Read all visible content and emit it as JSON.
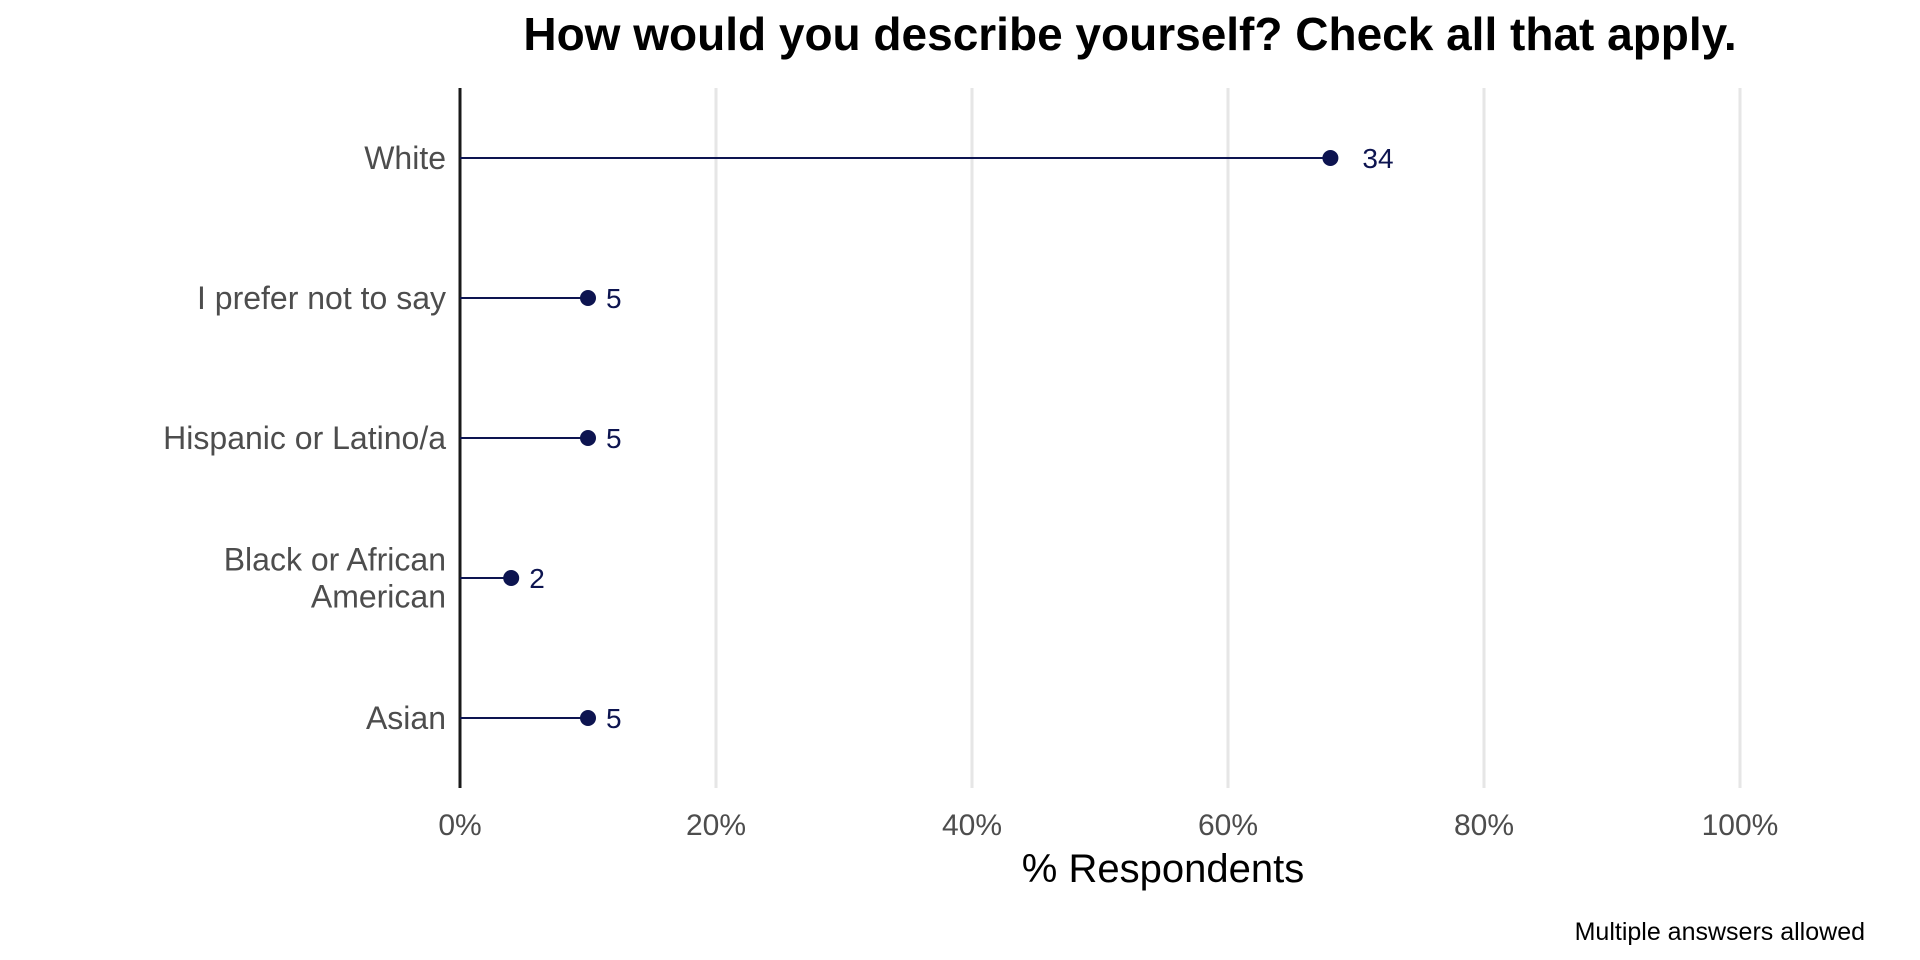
{
  "chart_data": {
    "type": "lollipop",
    "title": "How would you describe yourself? Check all that apply.",
    "xlabel": "% Respondents",
    "ylabel": "",
    "caption": "Multiple answsers allowed",
    "xlim": [
      0,
      100
    ],
    "x_ticks": [
      "0%",
      "20%",
      "40%",
      "60%",
      "80%",
      "100%"
    ],
    "categories": [
      [
        "White"
      ],
      [
        "I prefer not to say"
      ],
      [
        "Hispanic or Latino/a"
      ],
      [
        "Black or African",
        "American"
      ],
      [
        "Asian"
      ]
    ],
    "percent": [
      68,
      10,
      10,
      4,
      10
    ],
    "counts": [
      "34",
      "5",
      "5",
      "2",
      "5"
    ],
    "grid": "vertical major",
    "colors": {
      "point": "#0d1450",
      "segment": "#0d1450",
      "grid": "#e6e6e6",
      "axis": "#1a1a1a"
    }
  }
}
